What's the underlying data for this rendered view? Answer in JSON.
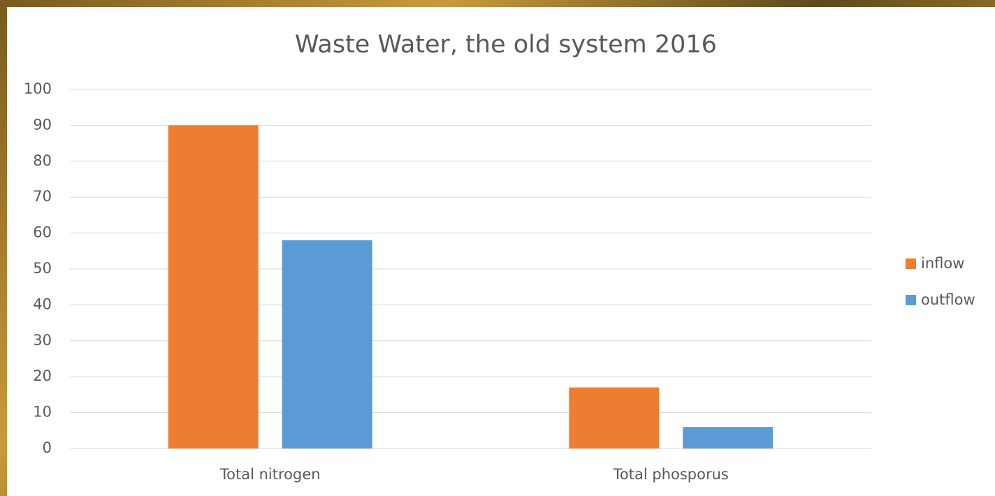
{
  "chart_data": {
    "type": "bar",
    "title": "Waste Water, the old system 2016",
    "categories": [
      "Total nitrogen",
      "Total phosporus"
    ],
    "series": [
      {
        "name": "inflow",
        "color": "#ed7d31",
        "values": [
          90,
          17
        ]
      },
      {
        "name": "outflow",
        "color": "#5b9bd5",
        "values": [
          58,
          6
        ]
      }
    ],
    "ylim": [
      0,
      100
    ],
    "yticks": [
      0,
      10,
      20,
      30,
      40,
      50,
      60,
      70,
      80,
      90,
      100
    ],
    "grid": true,
    "legend": "right"
  }
}
